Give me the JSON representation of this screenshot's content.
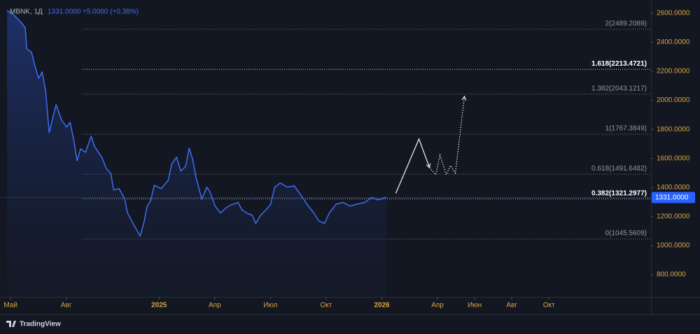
{
  "chart_data": {
    "type": "line",
    "symbol": "MBNK, 1Д",
    "price": "1331.0000",
    "change": "+5.0000 (+0.38%)",
    "brand": "TradingView",
    "series": [
      {
        "name": "MBNK",
        "color": "#3d6df2",
        "x": [
          -0.19,
          0.19,
          0.57,
          0.79,
          0.87,
          1.13,
          1.32,
          1.51,
          1.7,
          1.89,
          2.08,
          2.26,
          2.45,
          2.75,
          3.02,
          3.21,
          3.4,
          3.58,
          3.77,
          4.04,
          4.34,
          4.53,
          4.91,
          5.17,
          5.4,
          5.55,
          5.85,
          6.15,
          6.3,
          6.6,
          6.98,
          7.17,
          7.36,
          7.55,
          7.74,
          8.11,
          8.49,
          8.68,
          8.94,
          9.17,
          9.43,
          9.62,
          9.81,
          10.0,
          10.3,
          10.57,
          10.75,
          11.02,
          11.32,
          11.58,
          11.89,
          12.26,
          12.45,
          12.72,
          13.02,
          13.21,
          13.47,
          13.77,
          14.0,
          14.23,
          14.53,
          14.91,
          15.28,
          15.66,
          16.04,
          16.34,
          16.6,
          16.91,
          17.17,
          17.55,
          17.92,
          18.3,
          18.68,
          19.06,
          19.43,
          19.81,
          20.23
        ],
        "values": [
          2619,
          2586,
          2537,
          2499,
          2355,
          2331,
          2234,
          2152,
          2196,
          2066,
          1777,
          1873,
          1970,
          1864,
          1816,
          1849,
          1729,
          1585,
          1666,
          1642,
          1753,
          1681,
          1609,
          1527,
          1498,
          1383,
          1392,
          1320,
          1224,
          1152,
          1065,
          1152,
          1272,
          1310,
          1416,
          1392,
          1450,
          1561,
          1609,
          1513,
          1546,
          1671,
          1594,
          1464,
          1320,
          1402,
          1368,
          1272,
          1224,
          1257,
          1281,
          1296,
          1248,
          1224,
          1209,
          1152,
          1209,
          1248,
          1281,
          1402,
          1431,
          1402,
          1411,
          1344,
          1272,
          1224,
          1171,
          1152,
          1224,
          1286,
          1296,
          1272,
          1286,
          1296,
          1330,
          1315,
          1331
        ]
      }
    ],
    "last_value": {
      "value": 1331,
      "label": "1331.0000"
    },
    "projection": [
      {
        "style": "solid",
        "x": [
          20.75,
          22.0,
          22.57
        ],
        "values": [
          1359,
          1734,
          1537
        ]
      },
      {
        "style": "dotted",
        "x": [
          22.57,
          22.91,
          23.13,
          23.47,
          23.7,
          23.96,
          24.45
        ],
        "values": [
          1537,
          1488,
          1623,
          1488,
          1551,
          1498,
          2027
        ]
      }
    ],
    "fib_levels": [
      {
        "value": 2489.2089,
        "label": "2(2489.2089)"
      },
      {
        "value": 2213.4721,
        "label": "1.618(2213.4721)",
        "emphasis": true
      },
      {
        "value": 2043.1217,
        "label": "1.382(2043.1217)"
      },
      {
        "value": 1767.3849,
        "label": "1(1767.3849)"
      },
      {
        "value": 1491.6482,
        "label": "0.618(1491.6482)"
      },
      {
        "value": 1321.2977,
        "label": "0.382(1321.2977)",
        "emphasis": true
      },
      {
        "value": 1045.5609,
        "label": "0(1045.5609)"
      }
    ],
    "xlim": [
      -0.57,
      34.5
    ],
    "xticks": [
      {
        "value": 0,
        "label": "Май"
      },
      {
        "value": 3,
        "label": "Авг"
      },
      {
        "value": 8,
        "label": "2025"
      },
      {
        "value": 11,
        "label": "Апр"
      },
      {
        "value": 14,
        "label": "Июл"
      },
      {
        "value": 17,
        "label": "Окт"
      },
      {
        "value": 20,
        "label": "2026"
      },
      {
        "value": 23,
        "label": "Апр"
      },
      {
        "value": 25,
        "label": "Июн"
      },
      {
        "value": 27,
        "label": "Авг"
      },
      {
        "value": 29,
        "label": "Окт"
      }
    ],
    "ylim": [
      646,
      2691
    ],
    "yticks": [
      {
        "value": 800,
        "label": "800.0000"
      },
      {
        "value": 1000,
        "label": "1000.0000"
      },
      {
        "value": 1200,
        "label": "1200.0000"
      },
      {
        "value": 1400,
        "label": "1400.0000"
      },
      {
        "value": 1600,
        "label": "1600.0000"
      },
      {
        "value": 1800,
        "label": "1800.0000"
      },
      {
        "value": 2000,
        "label": "2000.0000"
      },
      {
        "value": 2200,
        "label": "2200.0000"
      },
      {
        "value": 2400,
        "label": "2400.0000"
      },
      {
        "value": 2600,
        "label": "2600.0000"
      }
    ]
  }
}
